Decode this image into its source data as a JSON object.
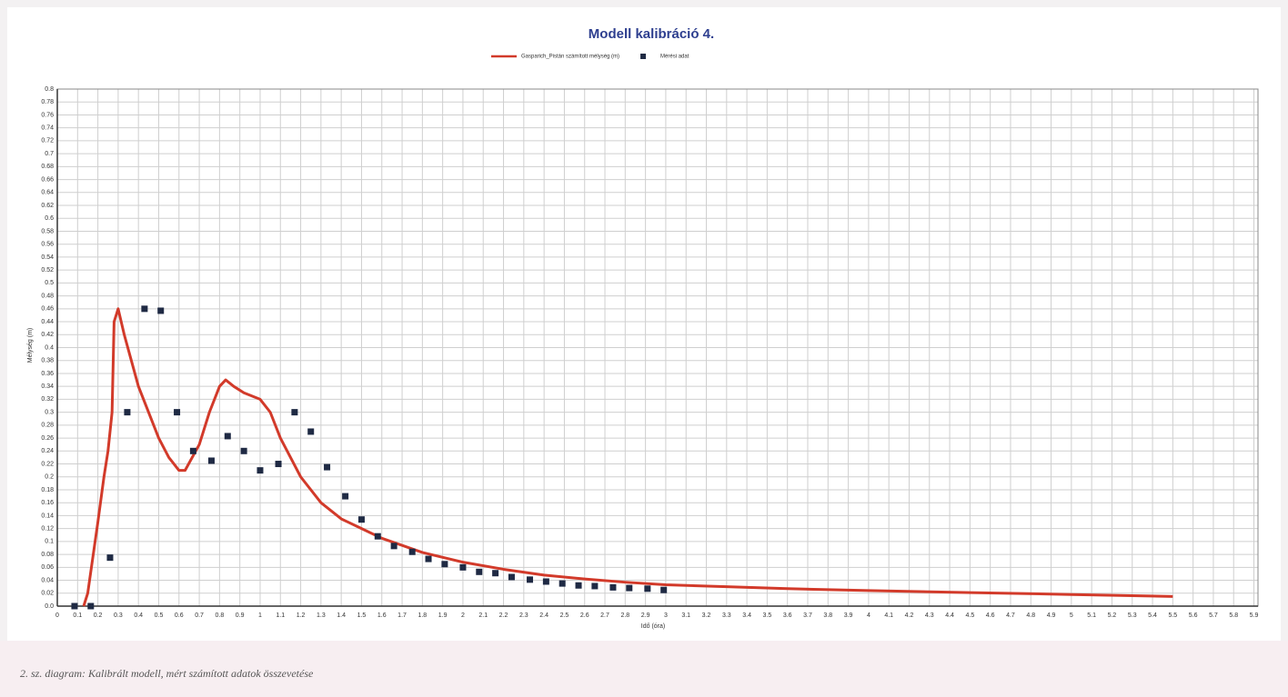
{
  "chart_data": {
    "type": "line",
    "title": "Modell kalibráció 4.",
    "x_label": "Idő (óra)",
    "y_label": "Mélység (m)",
    "caption": "2. sz. diagram: Kalibrált modell, mért számított adatok összevetése",
    "xlim": [
      0,
      5.92
    ],
    "ylim": [
      0,
      0.8
    ],
    "grid": true,
    "legend": "top",
    "xticks": [
      0,
      0.1,
      0.2,
      0.3,
      0.4,
      0.5,
      0.6,
      0.7,
      0.8,
      0.9,
      1,
      1.1,
      1.2,
      1.3,
      1.4,
      1.5,
      1.6,
      1.7,
      1.8,
      1.9,
      2,
      2.1,
      2.2,
      2.3,
      2.4,
      2.5,
      2.6,
      2.7,
      2.8,
      2.9,
      3,
      3.1,
      3.2,
      3.3,
      3.4,
      3.5,
      3.6,
      3.7,
      3.8,
      3.9,
      4,
      4.1,
      4.2,
      4.3,
      4.4,
      4.5,
      4.6,
      4.7,
      4.8,
      4.9,
      5,
      5.1,
      5.2,
      5.3,
      5.4,
      5.5,
      5.6,
      5.7,
      5.8,
      5.9
    ],
    "yticks": [
      {
        "value": 0,
        "label": "0.0"
      },
      0.02,
      0.04,
      0.06,
      0.08,
      0.1,
      0.12,
      0.14,
      0.16,
      0.18,
      0.2,
      0.22,
      0.24,
      0.26,
      0.28,
      0.3,
      0.32,
      0.34,
      0.36,
      0.38,
      0.4,
      0.42,
      0.44,
      0.46,
      0.48,
      0.5,
      0.52,
      0.54,
      0.56,
      0.58,
      0.6,
      0.62,
      0.64,
      0.66,
      0.68,
      0.7,
      0.72,
      0.74,
      0.76,
      0.78,
      0.8
    ],
    "series": [
      {
        "name": "Gasparich_Pistán számított mélység (m)",
        "type": "line",
        "color": "#d23a2a",
        "x": [
          0.13,
          0.15,
          0.2,
          0.23,
          0.25,
          0.27,
          0.28,
          0.3,
          0.33,
          0.4,
          0.5,
          0.55,
          0.6,
          0.63,
          0.7,
          0.75,
          0.8,
          0.83,
          0.87,
          0.92,
          1.0,
          1.05,
          1.1,
          1.2,
          1.3,
          1.4,
          1.5,
          1.6,
          1.8,
          2.0,
          2.2,
          2.4,
          2.6,
          2.8,
          3.0,
          3.3,
          3.6,
          4.0,
          4.5,
          5.0,
          5.5
        ],
        "values": [
          0,
          0.02,
          0.13,
          0.2,
          0.24,
          0.3,
          0.44,
          0.46,
          0.42,
          0.34,
          0.26,
          0.23,
          0.21,
          0.21,
          0.25,
          0.3,
          0.34,
          0.35,
          0.34,
          0.33,
          0.32,
          0.3,
          0.26,
          0.2,
          0.16,
          0.135,
          0.12,
          0.105,
          0.083,
          0.068,
          0.057,
          0.048,
          0.042,
          0.037,
          0.033,
          0.03,
          0.027,
          0.024,
          0.021,
          0.018,
          0.015
        ]
      },
      {
        "name": "Mérési adat",
        "type": "scatter",
        "color": "#1f2a44",
        "x": [
          0.085,
          0.165,
          0.26,
          0.345,
          0.43,
          0.51,
          0.59,
          0.67,
          0.76,
          0.84,
          0.92,
          1.0,
          1.09,
          1.17,
          1.25,
          1.33,
          1.42,
          1.5,
          1.58,
          1.66,
          1.75,
          1.83,
          1.91,
          2.0,
          2.08,
          2.16,
          2.24,
          2.33,
          2.41,
          2.49,
          2.57,
          2.65,
          2.74,
          2.82,
          2.91,
          2.99
        ],
        "values": [
          0,
          0,
          0.075,
          0.3,
          0.46,
          0.457,
          0.3,
          0.24,
          0.225,
          0.263,
          0.24,
          0.21,
          0.22,
          0.3,
          0.27,
          0.215,
          0.17,
          0.134,
          0.108,
          0.093,
          0.084,
          0.073,
          0.065,
          0.06,
          0.053,
          0.051,
          0.045,
          0.041,
          0.038,
          0.035,
          0.032,
          0.031,
          0.029,
          0.028,
          0.027,
          0.025
        ]
      }
    ]
  }
}
